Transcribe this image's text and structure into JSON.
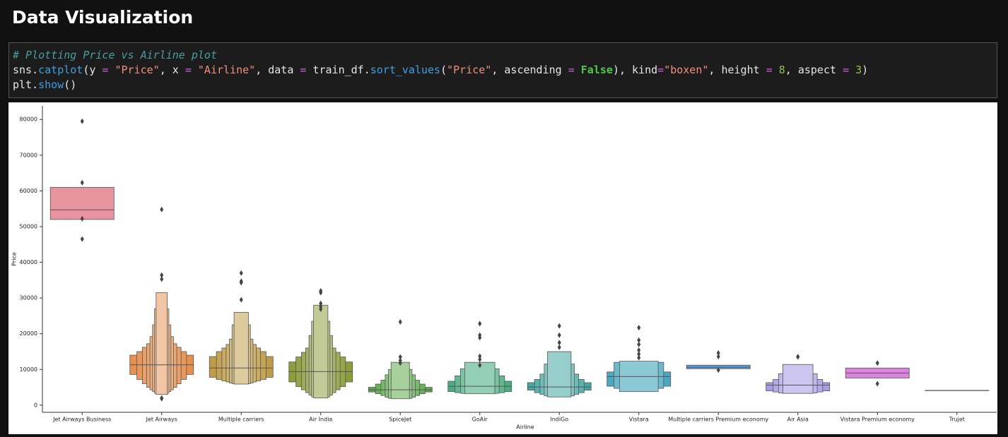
{
  "header": {
    "title": "Data Visualization"
  },
  "code": [
    [
      [
        "# Plotting Price vs Airline plot",
        "#4a9e9e"
      ]
    ],
    [
      [
        "sns.",
        "#e6e6e6"
      ],
      [
        "catplot",
        "#3ea0e0"
      ],
      [
        "(y ",
        "#e6e6e6"
      ],
      [
        "=",
        "#d060e0"
      ],
      [
        " ",
        "#e6e6e6"
      ],
      [
        "\"Price\"",
        "#f0907a"
      ],
      [
        ", x ",
        "#e6e6e6"
      ],
      [
        "=",
        "#d060e0"
      ],
      [
        " ",
        "#e6e6e6"
      ],
      [
        "\"Airline\"",
        "#f0907a"
      ],
      [
        ", data ",
        "#e6e6e6"
      ],
      [
        "=",
        "#d060e0"
      ],
      [
        " train_df.",
        "#e6e6e6"
      ],
      [
        "sort_values",
        "#3ea0e0"
      ],
      [
        "(",
        "#e6e6e6"
      ],
      [
        "\"Price\"",
        "#f0907a"
      ],
      [
        ", ascending ",
        "#e6e6e6"
      ],
      [
        "=",
        "#d060e0"
      ],
      [
        " ",
        "#e6e6e6"
      ],
      [
        "False",
        "#4ec94e"
      ],
      [
        "), kind",
        "#e6e6e6"
      ],
      [
        "=",
        "#d060e0"
      ],
      [
        "\"boxen\"",
        "#f0907a"
      ],
      [
        ", height ",
        "#e6e6e6"
      ],
      [
        "=",
        "#d060e0"
      ],
      [
        " ",
        "#e6e6e6"
      ],
      [
        "8",
        "#8bc34a"
      ],
      [
        ", aspect ",
        "#e6e6e6"
      ],
      [
        "=",
        "#d060e0"
      ],
      [
        " ",
        "#e6e6e6"
      ],
      [
        "3",
        "#8bc34a"
      ],
      [
        ")",
        "#e6e6e6"
      ]
    ],
    [
      [
        "plt.",
        "#e6e6e6"
      ],
      [
        "show",
        "#3ea0e0"
      ],
      [
        "()",
        "#e6e6e6"
      ]
    ]
  ],
  "chart_data": {
    "type": "boxen",
    "x_label": "Airline",
    "y_label": "Price",
    "ylim": [
      -2000,
      83800
    ],
    "yticks": [
      0,
      10000,
      20000,
      30000,
      40000,
      50000,
      60000,
      70000,
      80000
    ],
    "categories": [
      "Jet Airways Business",
      "Jet Airways",
      "Multiple carriers",
      "Air India",
      "SpiceJet",
      "GoAir",
      "IndiGo",
      "Vistara",
      "Multiple carriers Premium economy",
      "Air Asia",
      "Vistara Premium economy",
      "Trujet"
    ],
    "series": [
      {
        "color": "#e8949f",
        "boxes": [
          [
            52000,
            61000
          ]
        ],
        "median": 54700,
        "outliers": [
          79500,
          62300,
          52200,
          46500
        ]
      },
      {
        "color": "#e6904f",
        "boxes": [
          [
            8600,
            14000
          ],
          [
            7200,
            15000
          ],
          [
            6000,
            16200
          ],
          [
            5000,
            17200
          ],
          [
            4300,
            19200
          ],
          [
            3800,
            22500
          ],
          [
            3300,
            27000
          ],
          [
            3000,
            31500
          ]
        ],
        "median": 11300,
        "outliers": [
          54800,
          36400,
          35300,
          2000,
          1800
        ]
      },
      {
        "color": "#bf9c45",
        "boxes": [
          [
            7800,
            13600
          ],
          [
            7200,
            15000
          ],
          [
            6800,
            16000
          ],
          [
            6500,
            17000
          ],
          [
            6200,
            18500
          ],
          [
            6000,
            22500
          ],
          [
            5900,
            26000
          ]
        ],
        "median": 10400,
        "outliers": [
          37000,
          34700,
          34300,
          29500
        ]
      },
      {
        "color": "#8c9d3b",
        "boxes": [
          [
            6500,
            12100
          ],
          [
            5200,
            13500
          ],
          [
            4300,
            14800
          ],
          [
            3500,
            16000
          ],
          [
            2800,
            19500
          ],
          [
            2300,
            23500
          ],
          [
            2000,
            28000
          ]
        ],
        "median": 9400,
        "outliers": [
          32000,
          31500,
          28500,
          27600,
          26900
        ]
      },
      {
        "color": "#5aaa4a",
        "boxes": [
          [
            3700,
            5000
          ],
          [
            3200,
            5900
          ],
          [
            2700,
            7000
          ],
          [
            2200,
            8500
          ],
          [
            1900,
            10000
          ],
          [
            1800,
            12000
          ]
        ],
        "median": 4300,
        "outliers": [
          23300,
          13500,
          12500,
          11800
        ]
      },
      {
        "color": "#48ad81",
        "boxes": [
          [
            3800,
            6700
          ],
          [
            3500,
            8200
          ],
          [
            3300,
            10200
          ],
          [
            3200,
            12000
          ]
        ],
        "median": 5300,
        "outliers": [
          22800,
          19600,
          18900,
          13700,
          12800,
          11200
        ]
      },
      {
        "color": "#46a8a3",
        "boxes": [
          [
            4200,
            6300
          ],
          [
            3500,
            7200
          ],
          [
            3000,
            8700
          ],
          [
            2600,
            11500
          ],
          [
            2300,
            15000
          ]
        ],
        "median": 5100,
        "outliers": [
          22200,
          19600,
          17500,
          16200
        ]
      },
      {
        "color": "#4aa9c0",
        "boxes": [
          [
            5300,
            9300
          ],
          [
            4700,
            12000
          ],
          [
            3800,
            12300
          ]
        ],
        "median": 8000,
        "outliers": [
          21700,
          18200,
          17000,
          15400,
          14300,
          13300
        ]
      },
      {
        "color": "#5b9ee0",
        "boxes": [
          [
            10200,
            11200
          ]
        ],
        "median": 10600,
        "outliers": [
          14600,
          13600,
          9800
        ]
      },
      {
        "color": "#a99ce6",
        "boxes": [
          [
            4000,
            6300
          ],
          [
            3700,
            7200
          ],
          [
            3400,
            8800
          ],
          [
            3300,
            11400
          ]
        ],
        "median": 5600,
        "outliers": [
          13600,
          13500
        ]
      },
      {
        "color": "#dd83dd",
        "boxes": [
          [
            7600,
            10400
          ]
        ],
        "median": 9000,
        "outliers": [
          11800,
          6000
        ]
      },
      {
        "color": "#e779b7",
        "boxes": [
          [
            4100,
            4150
          ]
        ],
        "median": 4140,
        "outliers": []
      }
    ]
  }
}
